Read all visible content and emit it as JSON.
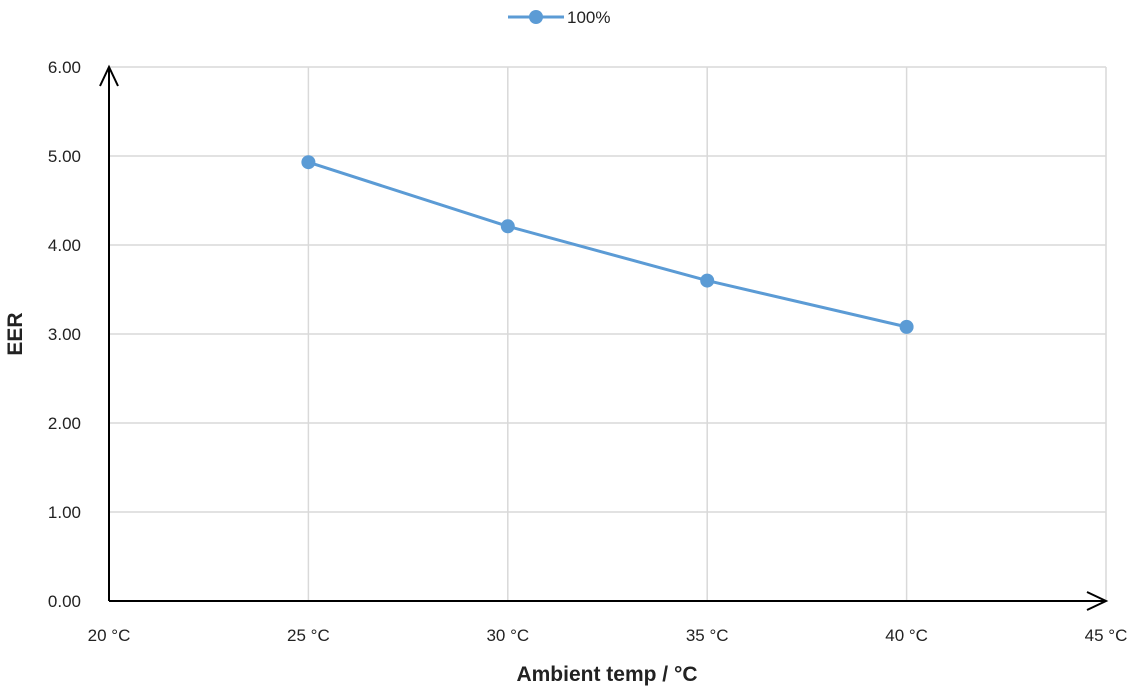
{
  "chart_data": {
    "type": "line",
    "title": "",
    "xlabel": "Ambient temp / °C",
    "ylabel": "EER",
    "x_ticks": [
      20,
      25,
      30,
      35,
      40,
      45
    ],
    "x_tick_labels": [
      "20 °C",
      "25 °C",
      "30 °C",
      "35 °C",
      "40 °C",
      "45 °C"
    ],
    "y_ticks": [
      0,
      1,
      2,
      3,
      4,
      5,
      6
    ],
    "y_tick_labels": [
      "0.00",
      "1.00",
      "2.00",
      "3.00",
      "4.00",
      "5.00",
      "6.00"
    ],
    "xlim": [
      20,
      45
    ],
    "ylim": [
      0,
      6
    ],
    "grid": true,
    "legend_position": "top-center",
    "series": [
      {
        "name": "100%",
        "color": "#5b9bd5",
        "x": [
          25,
          30,
          35,
          40
        ],
        "y": [
          4.93,
          4.21,
          3.6,
          3.08
        ]
      }
    ]
  }
}
